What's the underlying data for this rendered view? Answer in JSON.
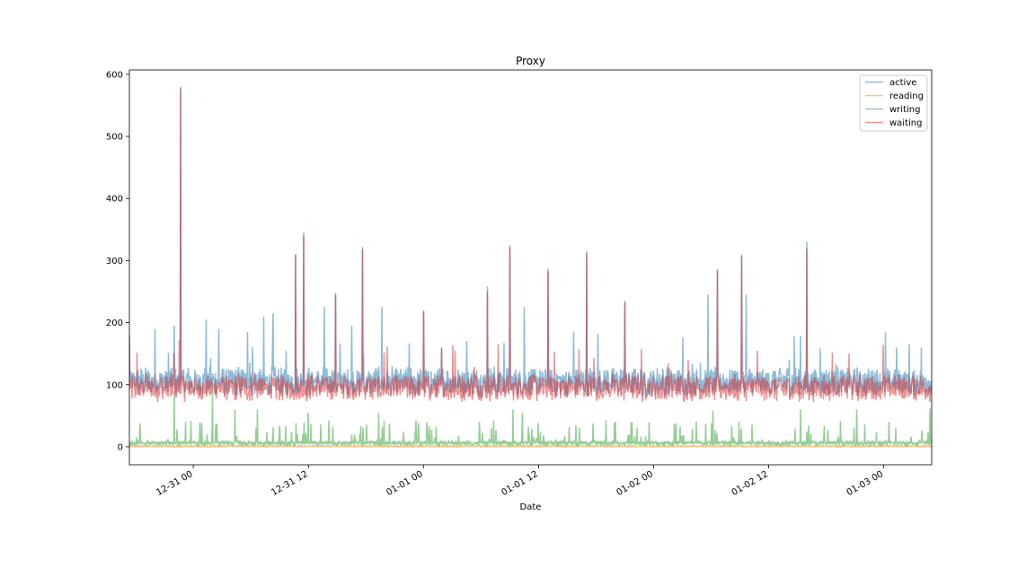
{
  "chart_data": {
    "type": "line",
    "title": "Proxy",
    "xlabel": "Date",
    "ylabel": "",
    "x_start": "2012-12-30 17:20",
    "x_end": "2013-01-03 05:00",
    "xlim": [
      "2012-12-30 17:20",
      "2013-01-03 05:00"
    ],
    "ylim": [
      -29,
      607
    ],
    "x_ticks": [
      "12-31 00",
      "12-31 12",
      "01-01 00",
      "01-01 12",
      "01-02 00",
      "01-02 12",
      "01-03 00"
    ],
    "x_tick_values": [
      "2012-12-31 00:00",
      "2012-12-31 12:00",
      "2013-01-01 00:00",
      "2013-01-01 12:00",
      "2013-01-02 00:00",
      "2013-01-02 12:00",
      "2013-01-03 00:00"
    ],
    "y_ticks": [
      0,
      100,
      200,
      300,
      400,
      500,
      600
    ],
    "grid": false,
    "legend": "top-right",
    "approx_sample_interval_minutes": 1,
    "series": [
      {
        "name": "active",
        "color": "#1f77b4",
        "alpha": 0.5,
        "baseline": 105,
        "noise": 20,
        "spikes": [
          {
            "x": "2012-12-30 17:20",
            "y": 180
          },
          {
            "x": "2012-12-30 20:00",
            "y": 190
          },
          {
            "x": "2012-12-30 22:00",
            "y": 195
          },
          {
            "x": "2012-12-30 22:40",
            "y": 580
          },
          {
            "x": "2012-12-31 01:20",
            "y": 205
          },
          {
            "x": "2012-12-31 02:40",
            "y": 190
          },
          {
            "x": "2012-12-31 05:40",
            "y": 185
          },
          {
            "x": "2012-12-31 07:20",
            "y": 210
          },
          {
            "x": "2012-12-31 08:20",
            "y": 215
          },
          {
            "x": "2012-12-31 09:40",
            "y": 155
          },
          {
            "x": "2012-12-31 10:40",
            "y": 310
          },
          {
            "x": "2012-12-31 11:30",
            "y": 345
          },
          {
            "x": "2012-12-31 13:40",
            "y": 225
          },
          {
            "x": "2012-12-31 14:50",
            "y": 248
          },
          {
            "x": "2012-12-31 16:30",
            "y": 195
          },
          {
            "x": "2012-12-31 17:40",
            "y": 322
          },
          {
            "x": "2012-12-31 19:40",
            "y": 225
          },
          {
            "x": "2013-01-01 00:00",
            "y": 220
          },
          {
            "x": "2013-01-01 06:40",
            "y": 258
          },
          {
            "x": "2013-01-01 09:00",
            "y": 325
          },
          {
            "x": "2013-01-01 10:30",
            "y": 225
          },
          {
            "x": "2013-01-01 13:00",
            "y": 287
          },
          {
            "x": "2013-01-01 15:40",
            "y": 185
          },
          {
            "x": "2013-01-01 17:00",
            "y": 315
          },
          {
            "x": "2013-01-01 21:00",
            "y": 235
          },
          {
            "x": "2013-01-02 05:40",
            "y": 245
          },
          {
            "x": "2013-01-02 06:40",
            "y": 286
          },
          {
            "x": "2013-01-02 09:10",
            "y": 310
          },
          {
            "x": "2013-01-02 09:40",
            "y": 245
          },
          {
            "x": "2013-01-02 16:00",
            "y": 330
          },
          {
            "x": "2013-01-02 14:40",
            "y": 178
          },
          {
            "x": "2013-01-03 01:20",
            "y": 160
          },
          {
            "x": "2013-01-03 02:40",
            "y": 165
          }
        ]
      },
      {
        "name": "reading",
        "color": "#ff7f0e",
        "alpha": 0.5,
        "baseline": 0,
        "noise": 2,
        "spikes": []
      },
      {
        "name": "writing",
        "color": "#2ca02c",
        "alpha": 0.5,
        "baseline": 5,
        "noise": 6,
        "spikes": [
          {
            "x": "2012-12-30 22:00",
            "y": 90
          },
          {
            "x": "2012-12-31 02:00",
            "y": 95
          },
          {
            "x": "2012-12-31 04:20",
            "y": 60
          },
          {
            "x": "2012-12-31 06:40",
            "y": 60
          },
          {
            "x": "2012-12-31 12:00",
            "y": 55
          },
          {
            "x": "2012-12-31 19:20",
            "y": 55
          },
          {
            "x": "2013-01-01 09:20",
            "y": 60
          },
          {
            "x": "2013-01-01 10:20",
            "y": 55
          },
          {
            "x": "2013-01-02 06:10",
            "y": 58
          },
          {
            "x": "2013-01-02 15:20",
            "y": 60
          },
          {
            "x": "2013-01-02 21:10",
            "y": 60
          },
          {
            "x": "2013-01-03 04:50",
            "y": 62
          }
        ]
      },
      {
        "name": "waiting",
        "color": "#d62728",
        "alpha": 0.5,
        "baseline": 95,
        "noise": 18,
        "spikes": [
          {
            "x": "2012-12-30 17:20",
            "y": 175
          },
          {
            "x": "2012-12-30 22:40",
            "y": 577
          },
          {
            "x": "2012-12-31 10:40",
            "y": 310
          },
          {
            "x": "2012-12-31 11:30",
            "y": 340
          },
          {
            "x": "2012-12-31 14:50",
            "y": 245
          },
          {
            "x": "2012-12-31 17:40",
            "y": 318
          },
          {
            "x": "2013-01-01 00:00",
            "y": 218
          },
          {
            "x": "2013-01-01 06:40",
            "y": 250
          },
          {
            "x": "2013-01-01 09:00",
            "y": 322
          },
          {
            "x": "2013-01-01 13:00",
            "y": 283
          },
          {
            "x": "2013-01-01 17:00",
            "y": 312
          },
          {
            "x": "2013-01-01 21:00",
            "y": 233
          },
          {
            "x": "2013-01-02 06:40",
            "y": 283
          },
          {
            "x": "2013-01-02 09:10",
            "y": 307
          },
          {
            "x": "2013-01-02 16:00",
            "y": 320
          }
        ]
      }
    ]
  }
}
